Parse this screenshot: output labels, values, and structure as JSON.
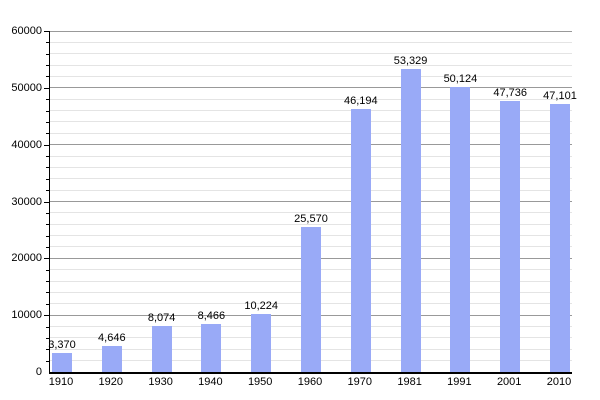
{
  "chart_data": {
    "type": "bar",
    "title": "",
    "xlabel": "",
    "ylabel": "",
    "categories": [
      "1910",
      "1920",
      "1930",
      "1940",
      "1950",
      "1960",
      "1970",
      "1981",
      "1991",
      "2001",
      "2010"
    ],
    "values": [
      3370,
      4646,
      8074,
      8466,
      10224,
      25570,
      46194,
      53329,
      50124,
      47736,
      47101
    ],
    "value_labels": [
      "3,370",
      "4,646",
      "8,074",
      "8,466",
      "10,224",
      "25,570",
      "46,194",
      "53,329",
      "50,124",
      "47,736",
      "47,101"
    ],
    "ylim": [
      0,
      60000
    ],
    "ytick_major_interval": 10000,
    "ytick_minor_interval": 2000,
    "ytick_labels": [
      "0",
      "10000",
      "20000",
      "30000",
      "40000",
      "50000",
      "60000"
    ],
    "grid": "on",
    "legend": "none",
    "colors": {
      "bar": "#99aaf7",
      "grid_major": "#999999",
      "grid_minor": "#e4e4e4",
      "axis": "#000000",
      "text": "#000000",
      "background": "#ffffff"
    }
  }
}
